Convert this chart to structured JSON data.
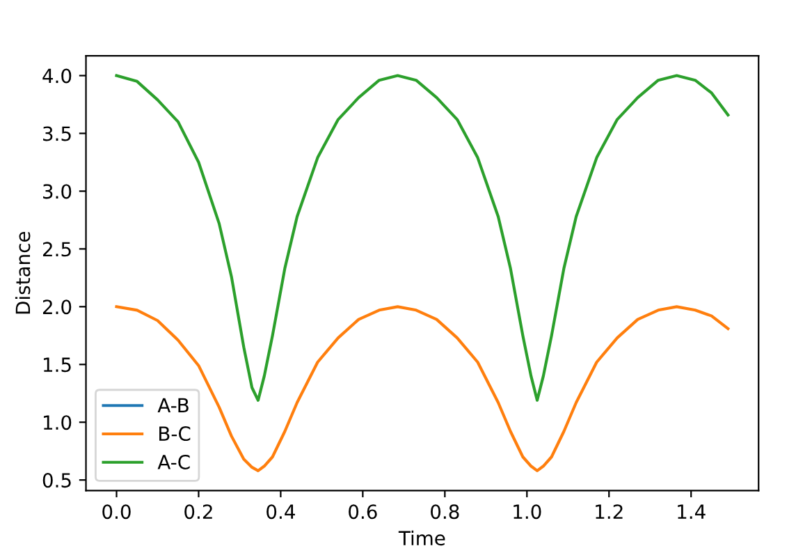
{
  "chart_data": {
    "type": "line",
    "xlabel": "Time",
    "ylabel": "Distance",
    "x": [
      0,
      0.05,
      0.1,
      0.15,
      0.2,
      0.25,
      0.28,
      0.31,
      0.33,
      0.345,
      0.36,
      0.38,
      0.41,
      0.44,
      0.49,
      0.54,
      0.59,
      0.64,
      0.685,
      0.73,
      0.78,
      0.83,
      0.88,
      0.93,
      0.96,
      0.99,
      1.01,
      1.025,
      1.04,
      1.06,
      1.09,
      1.12,
      1.17,
      1.22,
      1.27,
      1.32,
      1.365,
      1.41,
      1.45,
      1.49
    ],
    "series": [
      {
        "name": "A-B",
        "color": "#1f77b4",
        "values": [
          null,
          null,
          null,
          null,
          null,
          null,
          null,
          null,
          null,
          null,
          null,
          null,
          null,
          null,
          null,
          null,
          null,
          null,
          null,
          null,
          null,
          null,
          null,
          null,
          null,
          null,
          null,
          null,
          null,
          null,
          null,
          null,
          null,
          null,
          null,
          null,
          null,
          null,
          null,
          null
        ]
      },
      {
        "name": "B-C",
        "color": "#ff7f0e",
        "values": [
          2.0,
          1.97,
          1.88,
          1.71,
          1.49,
          1.13,
          0.88,
          0.68,
          0.61,
          0.58,
          0.62,
          0.7,
          0.92,
          1.17,
          1.52,
          1.73,
          1.89,
          1.97,
          2.0,
          1.97,
          1.89,
          1.73,
          1.52,
          1.17,
          0.92,
          0.7,
          0.62,
          0.58,
          0.62,
          0.7,
          0.92,
          1.17,
          1.52,
          1.73,
          1.89,
          1.97,
          2.0,
          1.97,
          1.92,
          1.81
        ]
      },
      {
        "name": "A-C",
        "color": "#2ca02c",
        "values": [
          4.0,
          3.95,
          3.79,
          3.6,
          3.25,
          2.72,
          2.26,
          1.65,
          1.3,
          1.19,
          1.4,
          1.75,
          2.33,
          2.78,
          3.29,
          3.62,
          3.81,
          3.96,
          4.0,
          3.96,
          3.81,
          3.62,
          3.29,
          2.78,
          2.33,
          1.75,
          1.4,
          1.19,
          1.4,
          1.75,
          2.33,
          2.78,
          3.29,
          3.62,
          3.81,
          3.96,
          4.0,
          3.96,
          3.85,
          3.66
        ]
      }
    ],
    "xlim": [
      -0.0745,
      1.5645
    ],
    "ylim": [
      0.409,
      4.171
    ],
    "xticks": [
      {
        "value": 0,
        "label": "0.0"
      },
      0.2,
      0.4,
      0.6,
      0.8,
      {
        "value": 1,
        "label": "1.0"
      },
      1.2,
      1.4
    ],
    "yticks": [
      0.5,
      {
        "value": 1,
        "label": "1.0"
      },
      1.5,
      {
        "value": 2,
        "label": "2.0"
      },
      2.5,
      {
        "value": 3,
        "label": "3.0"
      },
      3.5,
      {
        "value": 4,
        "label": "4.0"
      }
    ],
    "grid": false,
    "legend": "lower left"
  }
}
